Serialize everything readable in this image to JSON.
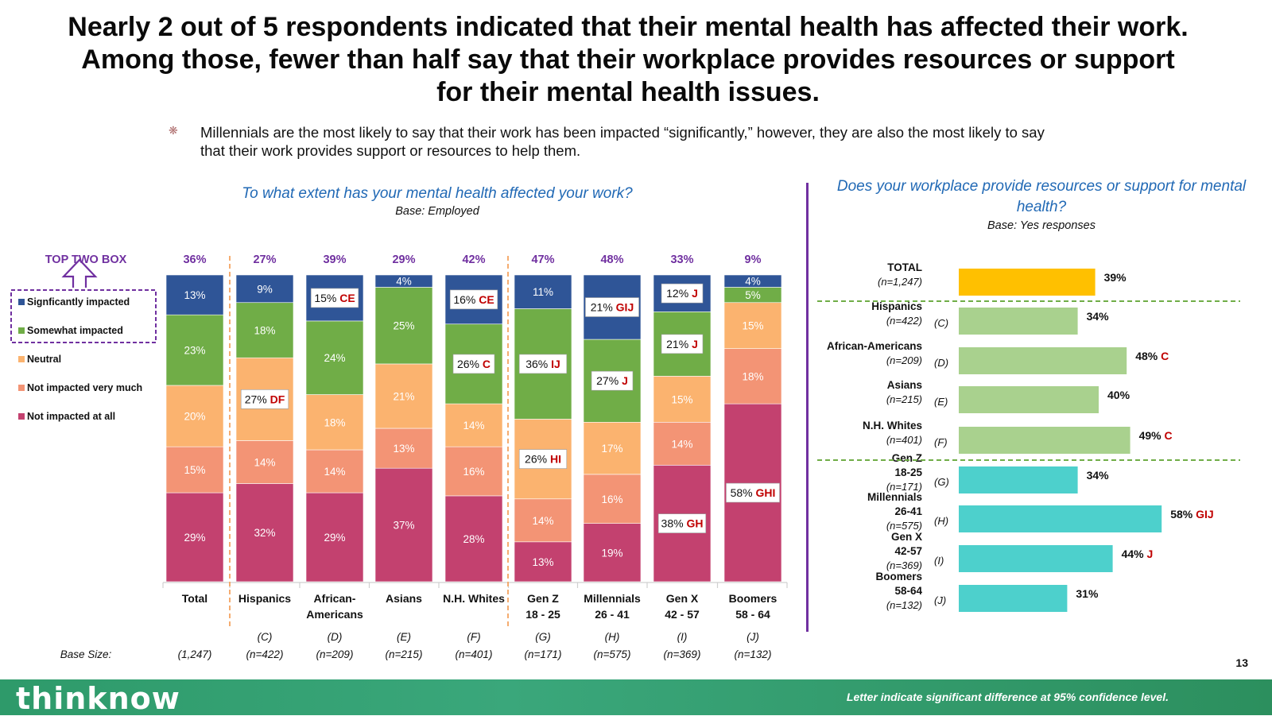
{
  "page": {
    "title": "Nearly 2 out of 5 respondents indicated that their mental health has affected their work. Among those, fewer than half say that their workplace provides resources or support for their mental health issues.",
    "bullet": "Millennials are the most likely to say that their work has been impacted “significantly,” however, they are also the most likely to say that their work provides support or resources to help them.",
    "page_number": "13",
    "footer_note": "Letter indicate significant difference at 95% confidence level.",
    "logo": "thinknow",
    "bullet_icon": "asterisk-icon"
  },
  "chart_data": [
    {
      "type": "bar",
      "stacked": true,
      "orientation": "vertical",
      "title": "To what extent has your mental health affected your work?",
      "subtitle": "Base: Employed",
      "top_box_label": "TOP TWO BOX",
      "base_size_label": "Base Size:",
      "categories": [
        "Total",
        "Hispanics",
        "African-Americans",
        "Asians",
        "N.H. Whites",
        "Gen Z 18 - 25",
        "Millennials 26 - 41",
        "Gen X 42 - 57",
        "Boomers 58 - 64"
      ],
      "category_lines": [
        [
          "Total"
        ],
        [
          "Hispanics"
        ],
        [
          "African-",
          "Americans"
        ],
        [
          "Asians"
        ],
        [
          "N.H. Whites"
        ],
        [
          "Gen Z",
          "18 - 25"
        ],
        [
          "Millennials",
          "26 - 41"
        ],
        [
          "Gen X",
          "42 - 57"
        ],
        [
          "Boomers",
          "58 - 64"
        ]
      ],
      "letters": [
        "",
        "(C)",
        "(D)",
        "(E)",
        "(F)",
        "(G)",
        "(H)",
        "(I)",
        "(J)"
      ],
      "base_sizes": [
        "(1,247)",
        "(n=422)",
        "(n=209)",
        "(n=215)",
        "(n=401)",
        "(n=171)",
        "(n=575)",
        "(n=369)",
        "(n=132)"
      ],
      "top_two_box": [
        "36%",
        "27%",
        "39%",
        "29%",
        "42%",
        "47%",
        "48%",
        "33%",
        "9%"
      ],
      "series": [
        {
          "name": "Not impacted at all",
          "color": "#c3416f",
          "values": [
            29,
            32,
            29,
            37,
            28,
            13,
            19,
            38,
            58
          ],
          "sig": [
            "",
            "",
            "",
            "",
            "",
            "",
            "",
            "GH",
            "GHI"
          ]
        },
        {
          "name": "Not impacted very much",
          "color": "#f39475",
          "values": [
            15,
            14,
            14,
            13,
            16,
            14,
            16,
            14,
            18
          ],
          "sig": [
            "",
            "",
            "",
            "",
            "",
            "",
            "",
            "",
            ""
          ]
        },
        {
          "name": "Neutral",
          "color": "#fbb36f",
          "values": [
            20,
            27,
            18,
            21,
            14,
            26,
            17,
            15,
            15
          ],
          "sig": [
            "",
            "DF",
            "",
            "",
            "",
            "HI",
            "",
            "",
            ""
          ]
        },
        {
          "name": "Somewhat impacted",
          "color": "#70ad47",
          "values": [
            23,
            18,
            24,
            25,
            26,
            36,
            27,
            21,
            5
          ],
          "sig": [
            "",
            "",
            "",
            "",
            "C",
            "IJ",
            "J",
            "J",
            ""
          ]
        },
        {
          "name": "Signficantly impacted",
          "color": "#2f5597",
          "values": [
            13,
            9,
            15,
            4,
            16,
            11,
            21,
            12,
            4
          ],
          "sig": [
            "",
            "",
            "CE",
            "",
            "CE",
            "",
            "GIJ",
            "J",
            ""
          ]
        }
      ],
      "legend_order": [
        "Signficantly impacted",
        "Somewhat impacted",
        "Neutral",
        "Not impacted very much",
        "Not impacted at all"
      ]
    },
    {
      "type": "bar",
      "orientation": "horizontal",
      "title": "Does your workplace provide resources or support for mental health?",
      "subtitle": "Base: Yes responses",
      "xlim": [
        0,
        100
      ],
      "rows": [
        {
          "label_lines": [
            "TOTAL"
          ],
          "n": "(n=1,247)",
          "letter": "",
          "value": 39,
          "sig": "",
          "color": "#ffc000"
        },
        {
          "label_lines": [
            "Hispanics"
          ],
          "n": "(n=422)",
          "letter": "(C)",
          "value": 34,
          "sig": "",
          "color": "#a9d18e"
        },
        {
          "label_lines": [
            "African-Americans"
          ],
          "n": "(n=209)",
          "letter": "(D)",
          "value": 48,
          "sig": "C",
          "color": "#a9d18e"
        },
        {
          "label_lines": [
            "Asians"
          ],
          "n": "(n=215)",
          "letter": "(E)",
          "value": 40,
          "sig": "",
          "color": "#a9d18e"
        },
        {
          "label_lines": [
            "N.H. Whites"
          ],
          "n": "(n=401)",
          "letter": "(F)",
          "value": 49,
          "sig": "C",
          "color": "#a9d18e"
        },
        {
          "label_lines": [
            "Gen Z",
            "18-25"
          ],
          "n": "(n=171)",
          "letter": "(G)",
          "value": 34,
          "sig": "",
          "color": "#4dd0cc"
        },
        {
          "label_lines": [
            "Millennials",
            "26-41"
          ],
          "n": "(n=575)",
          "letter": "(H)",
          "value": 58,
          "sig": "GIJ",
          "color": "#4dd0cc"
        },
        {
          "label_lines": [
            "Gen X",
            "42-57"
          ],
          "n": "(n=369)",
          "letter": "(I)",
          "value": 44,
          "sig": "J",
          "color": "#4dd0cc"
        },
        {
          "label_lines": [
            "Boomers",
            "58-64"
          ],
          "n": "(n=132)",
          "letter": "(J)",
          "value": 31,
          "sig": "",
          "color": "#4dd0cc"
        }
      ]
    }
  ]
}
